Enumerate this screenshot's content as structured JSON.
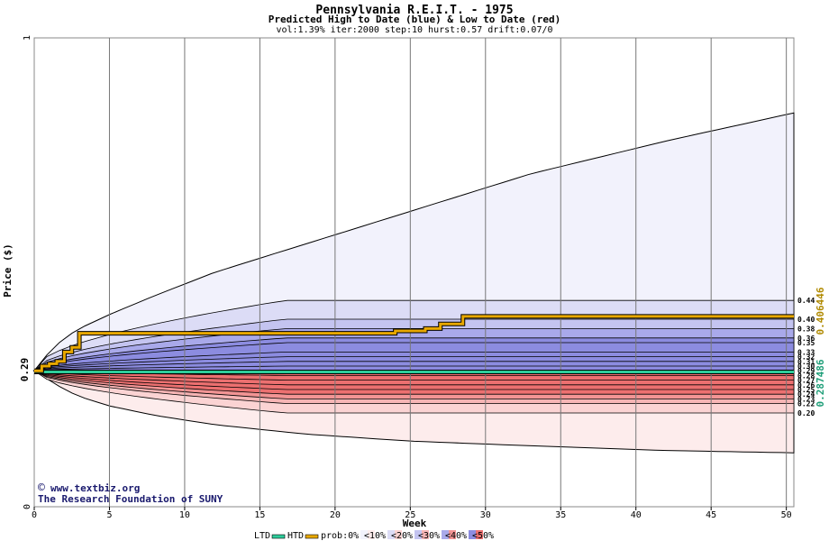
{
  "chart_data": {
    "type": "area",
    "title": "Pennsylvania R.E.I.T. - 1975",
    "subtitle": "Predicted High to Date (blue) &  Low to Date (red)",
    "params": "vol:1.39% iter:2000 step:10 hurst:0.57 drift:0.07/0",
    "xlabel": "Week",
    "ylabel": "Price ($)",
    "xlim": [
      0,
      50.5
    ],
    "ylim": [
      0,
      1
    ],
    "x_ticks": [
      0,
      5,
      10,
      15,
      20,
      25,
      30,
      35,
      40,
      45,
      50
    ],
    "y_ticks": [
      0,
      1
    ],
    "current_price": 0.29,
    "current_price_label": "0.29",
    "htd_value_label": "0.406446",
    "ltd_value_label": "0.287486",
    "htd_value": 0.406446,
    "ltd_value": 0.287486,
    "right_labels": [
      "0.44",
      "0.40",
      "0.38",
      "0.36",
      "0.35",
      "0.33",
      "0.32",
      "0.31",
      "0.30",
      "0.29",
      "0.28",
      "0.27",
      "0.26",
      "0.25",
      "0.24",
      "0.23",
      "0.22",
      "0.20"
    ],
    "high_bands_final": [
      0.84,
      0.44,
      0.4,
      0.38,
      0.36,
      0.35,
      0.33,
      0.32,
      0.31,
      0.3,
      0.29
    ],
    "low_bands_final": [
      0.28,
      0.27,
      0.26,
      0.25,
      0.24,
      0.23,
      0.22,
      0.2,
      0.11
    ],
    "high_cone_x": [
      0,
      1,
      2,
      3,
      5,
      8,
      12,
      18,
      25,
      33,
      42,
      50.5
    ],
    "high_cone_y": [
      0.29,
      0.33,
      0.36,
      0.38,
      0.41,
      0.45,
      0.5,
      0.56,
      0.63,
      0.71,
      0.78,
      0.84
    ],
    "low_cone_x": [
      0,
      1,
      2,
      3,
      5,
      8,
      12,
      18,
      25,
      33,
      42,
      50.5
    ],
    "low_cone_y": [
      0.29,
      0.27,
      0.25,
      0.235,
      0.215,
      0.195,
      0.175,
      0.155,
      0.14,
      0.13,
      0.12,
      0.115
    ],
    "htd_line_x": [
      0,
      0.5,
      1,
      1.5,
      2,
      2.5,
      3,
      20,
      24,
      26,
      27,
      28,
      28.5,
      50.5
    ],
    "htd_line_y": [
      0.29,
      0.3,
      0.305,
      0.31,
      0.33,
      0.34,
      0.37,
      0.37,
      0.375,
      0.38,
      0.39,
      0.39,
      0.406,
      0.406
    ],
    "ltd_line_x": [
      0,
      50.5
    ],
    "ltd_line_y": [
      0.2875,
      0.2875
    ],
    "grid": true,
    "legend_position": "bottom",
    "legend": {
      "ltd": "LTD",
      "htd": "HTD",
      "prob": "prob:0%",
      "bands": [
        "<10%",
        "<20%",
        "<30%",
        "<40%",
        "<50%"
      ]
    },
    "credit_url": "www.textbiz.org",
    "credit_org": "The Research Foundation of SUNY",
    "colors": {
      "htd": "#e8a800",
      "ltd": "#2ecc9a",
      "high_band": [
        "#f2f2fc",
        "#dcdcf6",
        "#c4c4f0",
        "#a9a9ea",
        "#8c8ce0"
      ],
      "low_band": [
        "#fdecec",
        "#fbd3d3",
        "#f7b5b5",
        "#f29494",
        "#ec7070"
      ]
    }
  }
}
